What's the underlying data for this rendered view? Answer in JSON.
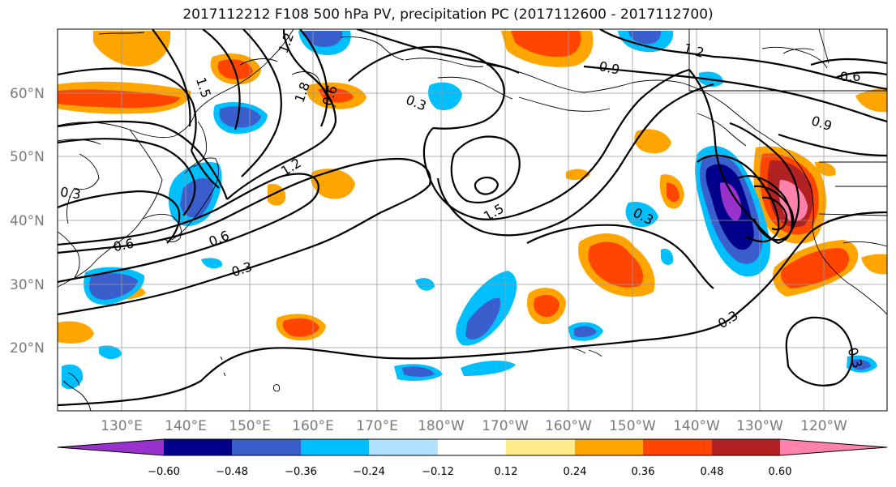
{
  "title": "2017112212 F108 500 hPa PV, precipitation PC (2017112600 - 2017112700)",
  "lat_labels": [
    "60°N",
    "50°N",
    "40°N",
    "30°N",
    "20°N"
  ],
  "lon_labels": [
    "130°E",
    "140°E",
    "150°E",
    "160°E",
    "170°E",
    "180°W",
    "170°W",
    "160°W",
    "150°W",
    "140°W",
    "130°W",
    "120°W"
  ],
  "contour_labels": [
    "1.2",
    "1.5",
    "1.8",
    "0.6",
    "0.9",
    "1.2",
    "0.6",
    "0.9",
    "0.3",
    "0.6",
    "1.2",
    "1.5",
    "0.3",
    "0.6",
    "0.3",
    "0.3",
    "0.3",
    "0.3"
  ],
  "colorbar": {
    "ticks": [
      "−0.60",
      "−0.48",
      "−0.36",
      "−0.24",
      "−0.12",
      "0.12",
      "0.24",
      "0.36",
      "0.48",
      "0.60"
    ],
    "colors": [
      "#9932cc",
      "#00008b",
      "#3a5fcd",
      "#00bfff",
      "#b0e2ff",
      "#ffffff",
      "#ffec8b",
      "#ffa500",
      "#ff4500",
      "#b22222",
      "#ff82ab"
    ]
  }
}
